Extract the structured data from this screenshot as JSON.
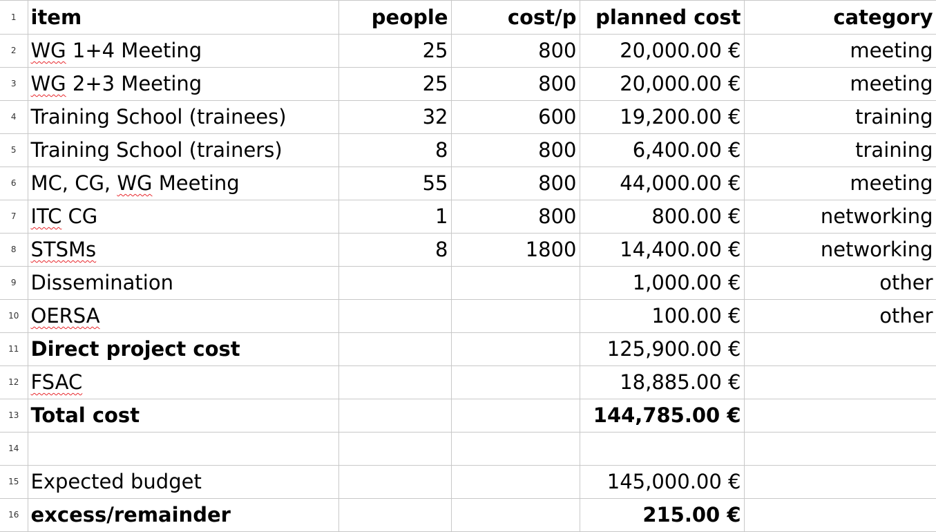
{
  "header": {
    "row_number": "1",
    "item": "item",
    "people": "people",
    "cost_p": "cost/p",
    "planned_cost": "planned cost",
    "category": "category"
  },
  "rows": [
    {
      "row_number": "2",
      "item_pre": "",
      "item_spell": "WG",
      "item_post": " 1+4 Meeting",
      "people": "25",
      "cost_p": "800",
      "planned_cost": "20,000.00 €",
      "category": "meeting"
    },
    {
      "row_number": "3",
      "item_pre": "",
      "item_spell": "WG",
      "item_post": " 2+3 Meeting",
      "people": "25",
      "cost_p": "800",
      "planned_cost": "20,000.00 €",
      "category": "meeting"
    },
    {
      "row_number": "4",
      "item": "Training School (trainees)",
      "people": "32",
      "cost_p": "600",
      "planned_cost": "19,200.00 €",
      "category": "training"
    },
    {
      "row_number": "5",
      "item": "Training School (trainers)",
      "people": "8",
      "cost_p": "800",
      "planned_cost": "6,400.00 €",
      "category": "training"
    },
    {
      "row_number": "6",
      "item_pre": "MC, CG, ",
      "item_spell": "WG",
      "item_post": " Meeting",
      "people": "55",
      "cost_p": "800",
      "planned_cost": "44,000.00 €",
      "category": "meeting"
    },
    {
      "row_number": "7",
      "item_pre": "",
      "item_spell": "ITC",
      "item_post": " CG",
      "people": "1",
      "cost_p": "800",
      "planned_cost": "800.00 €",
      "category": "networking"
    },
    {
      "row_number": "8",
      "item_pre": "",
      "item_spell": "STSMs",
      "item_post": "",
      "people": "8",
      "cost_p": "1800",
      "planned_cost": "14,400.00 €",
      "category": "networking"
    },
    {
      "row_number": "9",
      "item": "Dissemination",
      "people": "",
      "cost_p": "",
      "planned_cost": "1,000.00 €",
      "category": "other"
    },
    {
      "row_number": "10",
      "item_pre": "",
      "item_spell": "OERSA",
      "item_post": "",
      "people": "",
      "cost_p": "",
      "planned_cost": "100.00 €",
      "category": "other"
    },
    {
      "row_number": "11",
      "item": "Direct project cost",
      "people": "",
      "cost_p": "",
      "planned_cost": "125,900.00 €",
      "category": ""
    },
    {
      "row_number": "12",
      "item_pre": "",
      "item_spell": "FSAC",
      "item_post": "",
      "people": "",
      "cost_p": "",
      "planned_cost": "18,885.00 €",
      "category": ""
    },
    {
      "row_number": "13",
      "item": "Total cost",
      "people": "",
      "cost_p": "",
      "planned_cost": "144,785.00 €",
      "category": ""
    },
    {
      "row_number": "14",
      "item": "",
      "people": "",
      "cost_p": "",
      "planned_cost": "",
      "category": ""
    },
    {
      "row_number": "15",
      "item": "Expected budget",
      "people": "",
      "cost_p": "",
      "planned_cost": "145,000.00 €",
      "category": ""
    },
    {
      "row_number": "16",
      "item": "excess/remainder",
      "people": "",
      "cost_p": "",
      "planned_cost": "215.00 €",
      "category": ""
    }
  ]
}
